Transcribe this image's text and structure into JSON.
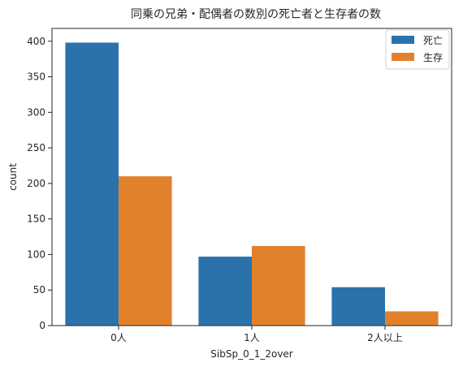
{
  "chart_data": {
    "type": "bar",
    "title": "同乗の兄弟・配偶者の数別の死亡者と生存者の数",
    "xlabel": "SibSp_0_1_2over",
    "ylabel": "count",
    "categories": [
      "0人",
      "1人",
      "2人以上"
    ],
    "series": [
      {
        "name": "死亡",
        "values": [
          398,
          97,
          54
        ],
        "color": "#2b72ac"
      },
      {
        "name": "生存",
        "values": [
          210,
          112,
          20
        ],
        "color": "#e1812c"
      }
    ],
    "ylim": [
      0,
      418
    ],
    "yticks": [
      0,
      50,
      100,
      150,
      200,
      250,
      300,
      350,
      400
    ],
    "grid": false,
    "legend": "top-right"
  }
}
